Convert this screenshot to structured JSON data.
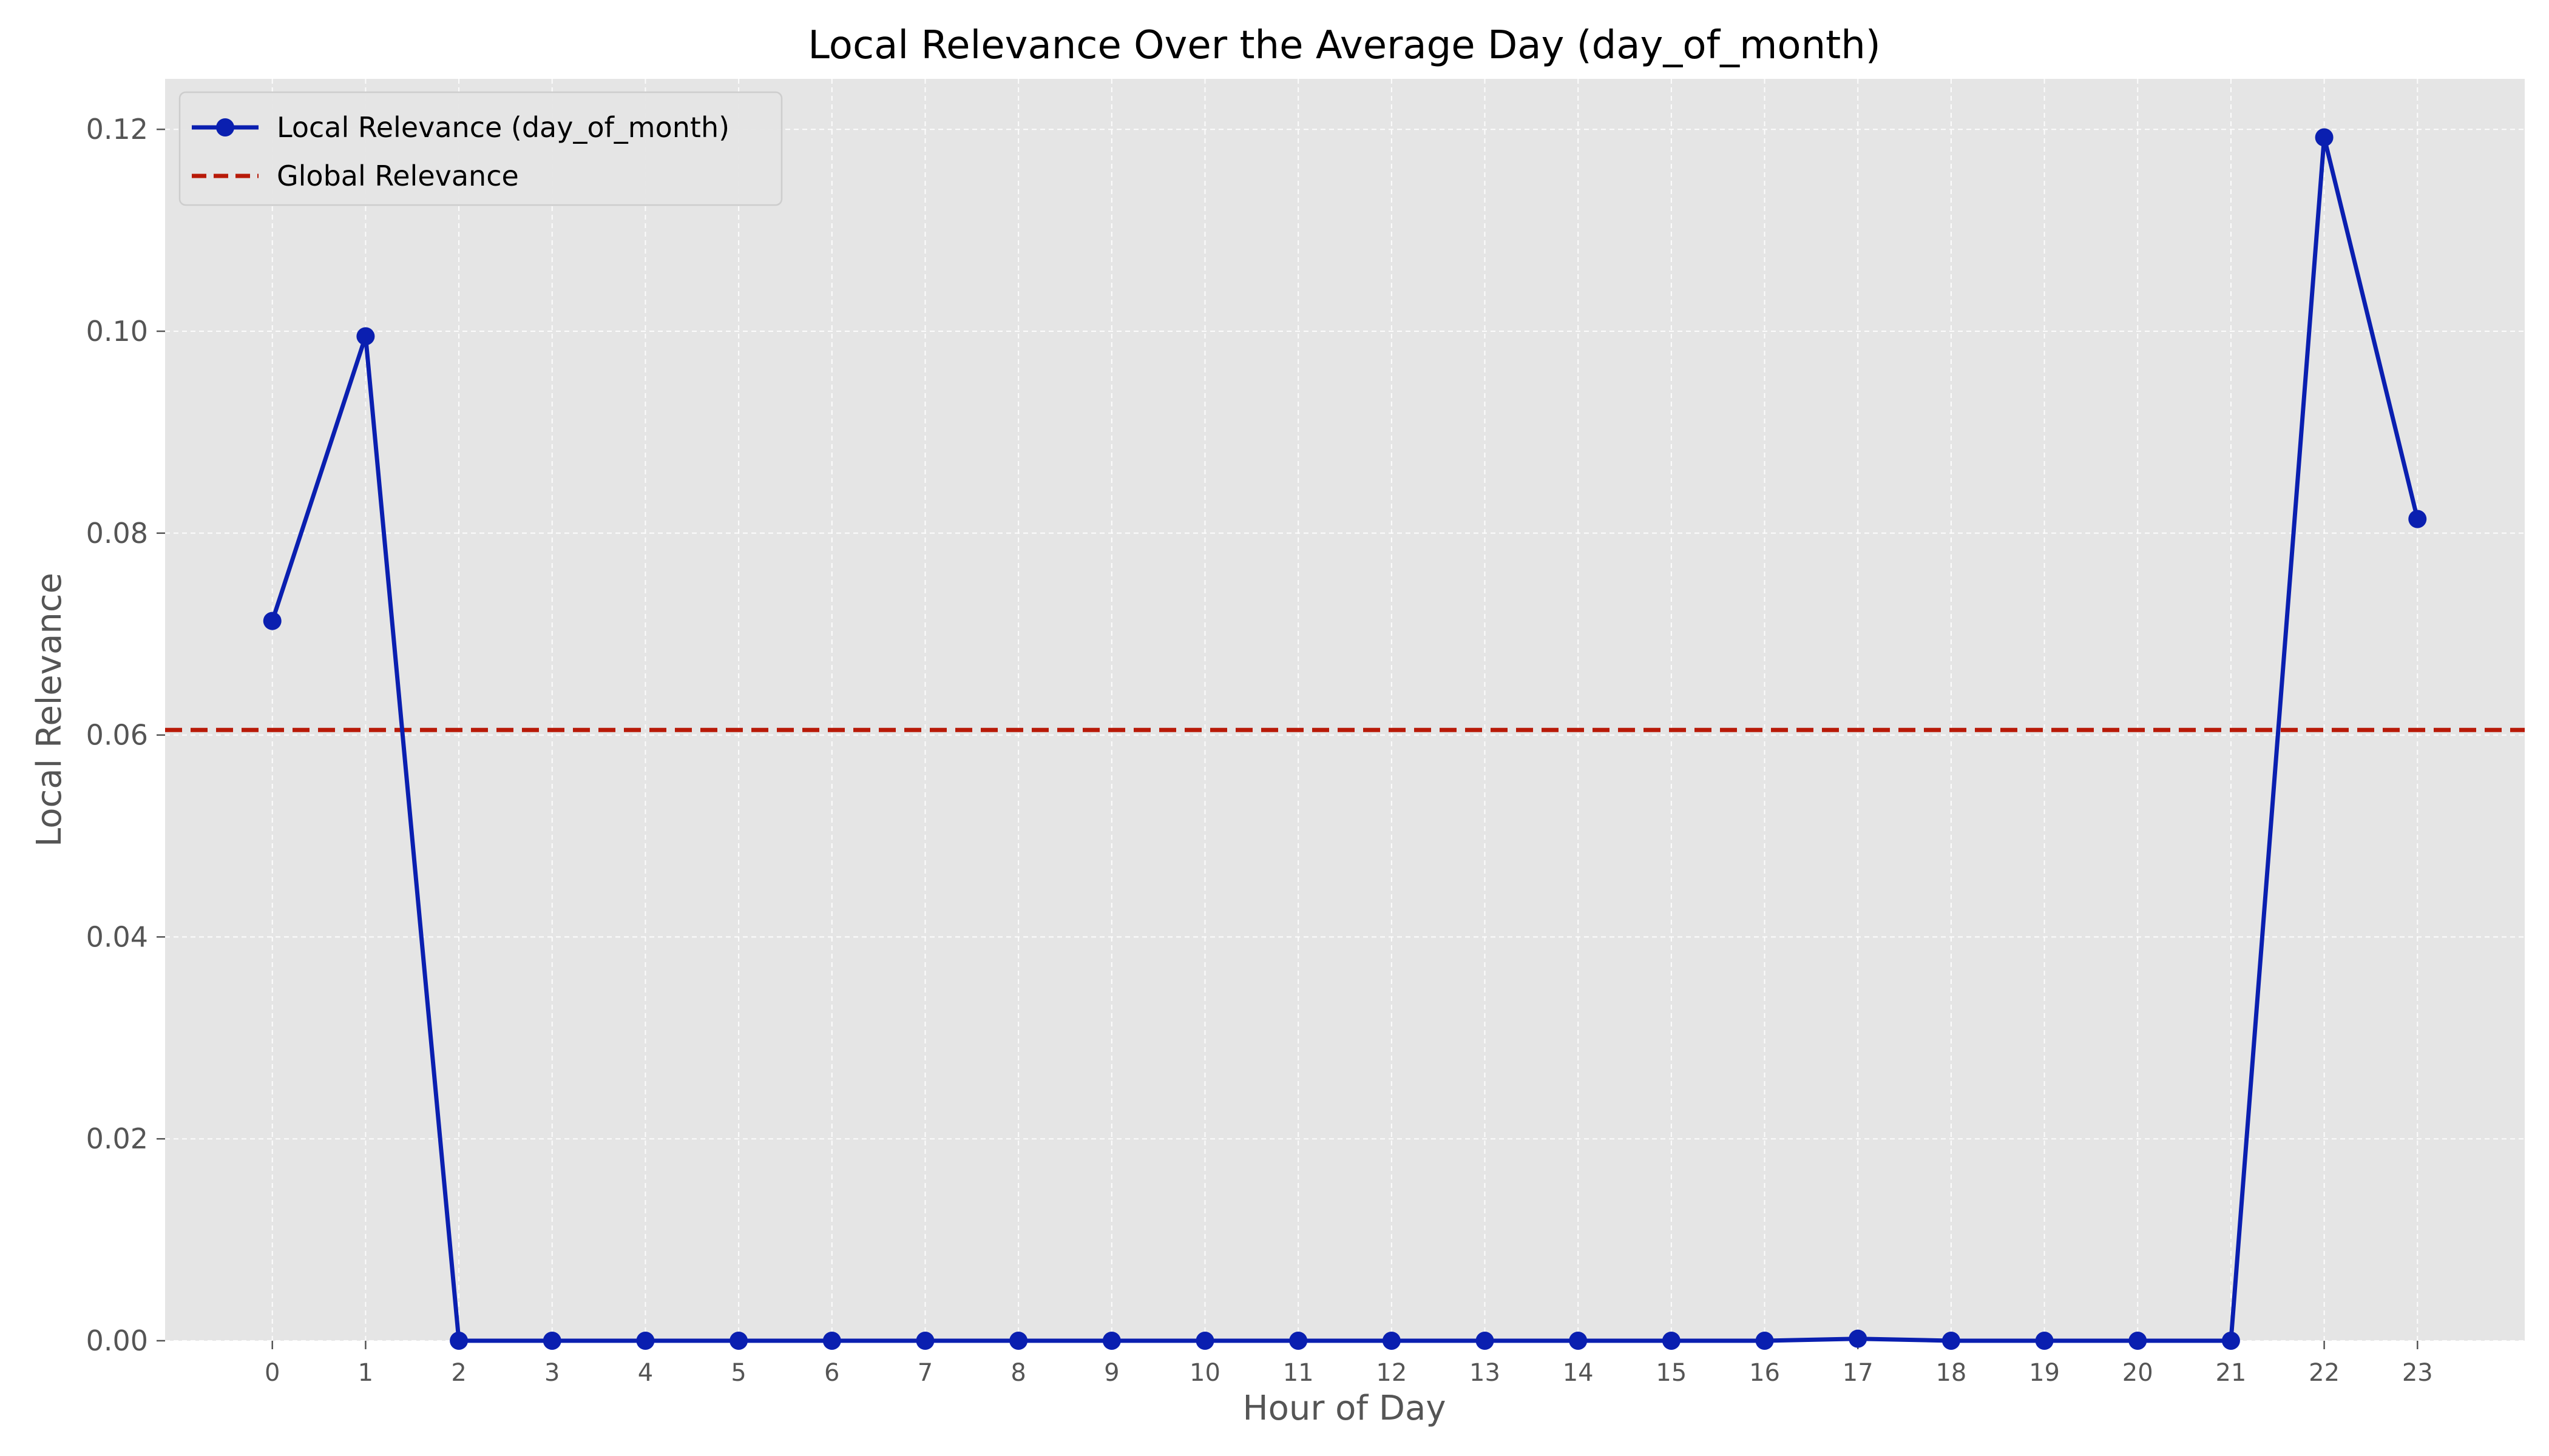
{
  "chart_data": {
    "type": "line",
    "title": "Local Relevance Over the Average Day (day_of_month)",
    "xlabel": "Hour of Day",
    "ylabel": "Local Relevance",
    "x": [
      0,
      1,
      2,
      3,
      4,
      5,
      6,
      7,
      8,
      9,
      10,
      11,
      12,
      13,
      14,
      15,
      16,
      17,
      18,
      19,
      20,
      21,
      22,
      23
    ],
    "xticks": [
      "0",
      "1",
      "2",
      "3",
      "4",
      "5",
      "6",
      "7",
      "8",
      "9",
      "10",
      "11",
      "12",
      "13",
      "14",
      "15",
      "16",
      "17",
      "18",
      "19",
      "20",
      "21",
      "22",
      "23"
    ],
    "yticks": [
      "0.00",
      "0.02",
      "0.04",
      "0.06",
      "0.08",
      "0.10",
      "0.12"
    ],
    "ytick_values": [
      0,
      0.02,
      0.04,
      0.06,
      0.08,
      0.1,
      0.12
    ],
    "xlim": [
      -1.15,
      24.15
    ],
    "ylim": [
      0,
      0.125
    ],
    "grid": true,
    "legend_position": "top-left",
    "series": [
      {
        "name": "Local Relevance (day_of_month)",
        "color": "#0a1fb0",
        "style": "solid-with-markers",
        "values": [
          0.0713,
          0.0995,
          0,
          0,
          0,
          0,
          0,
          0,
          0,
          0,
          0,
          0,
          0,
          0,
          0,
          0,
          0,
          0.0002,
          0,
          0,
          0,
          0,
          0.1192,
          0.0814
        ]
      }
    ],
    "reference_lines": [
      {
        "name": "Global Relevance",
        "color": "#b81a08",
        "style": "dashed",
        "y": 0.0605
      }
    ],
    "plot_background": "#e5e5e5",
    "grid_color": "#ffffff"
  }
}
